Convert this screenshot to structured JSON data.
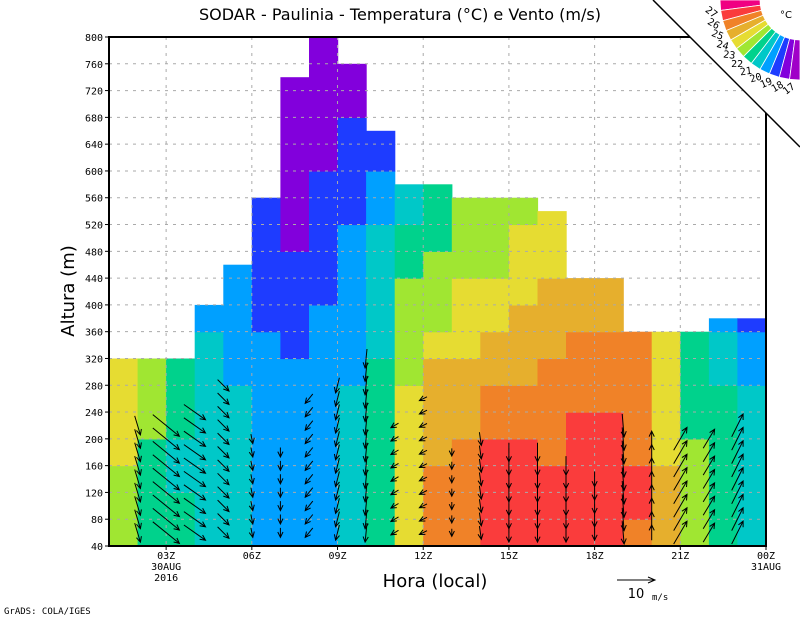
{
  "chart_data": {
    "type": "heatmap",
    "title": "SODAR - Paulinia - Temperatura (°C) e Vento (m/s)",
    "xlabel": "Hora (local)",
    "ylabel": "Altura (m)",
    "xlim_hours": [
      1,
      24
    ],
    "ylim": [
      40,
      800
    ],
    "grid": true,
    "y_ticks": [
      40,
      80,
      120,
      160,
      200,
      240,
      280,
      320,
      360,
      400,
      440,
      480,
      520,
      560,
      600,
      640,
      680,
      720,
      760,
      800
    ],
    "x_ticks": [
      {
        "hour": 3,
        "label": "03Z",
        "sub1": "30AUG",
        "sub2": "2016"
      },
      {
        "hour": 6,
        "label": "06Z"
      },
      {
        "hour": 9,
        "label": "09Z"
      },
      {
        "hour": 12,
        "label": "12Z"
      },
      {
        "hour": 15,
        "label": "15Z"
      },
      {
        "hour": 18,
        "label": "18Z"
      },
      {
        "hour": 21,
        "label": "21Z"
      },
      {
        "hour": 24,
        "label": "00Z",
        "sub1": "31AUG"
      }
    ],
    "colorbar": {
      "unit": "°C",
      "levels": [
        17,
        18,
        19,
        20,
        21,
        22,
        23,
        24,
        25,
        26,
        27
      ],
      "colors": [
        "#a000c8",
        "#8200dc",
        "#1e3cff",
        "#00a0ff",
        "#00c8c8",
        "#00d28c",
        "#a0e632",
        "#e6dc32",
        "#e6af2d",
        "#f08228",
        "#fa3c3c",
        "#f00082"
      ],
      "placement": "top-right"
    },
    "temperature": {
      "row_height_m": 40,
      "columns": [
        {
          "hour": 1,
          "top": 320,
          "t": [
            22.6,
            22.3,
            22.5,
            23.0,
            23.5,
            23.6,
            23.4
          ]
        },
        {
          "hour": 2,
          "top": 320,
          "t": [
            21.5,
            21.5,
            21.6,
            21.8,
            22.3,
            22.5,
            22.5
          ]
        },
        {
          "hour": 3,
          "top": 320,
          "t": [
            21.2,
            21.0,
            20.8,
            20.8,
            21.2,
            21.5,
            21.6
          ]
        },
        {
          "hour": 4,
          "top": 400,
          "t": [
            20.6,
            20.5,
            20.4,
            20.3,
            20.3,
            20.2,
            20.2,
            20.0,
            19.8
          ]
        },
        {
          "hour": 5,
          "top": 460,
          "t": [
            20.6,
            20.6,
            20.5,
            20.3,
            20.2,
            20.0,
            19.8,
            19.6,
            19.5,
            19.5,
            19.5
          ]
        },
        {
          "hour": 6,
          "top": 560,
          "t": [
            19.7,
            19.5,
            19.4,
            19.4,
            19.3,
            19.2,
            19.1,
            19.0,
            18.7,
            18.5,
            18.4,
            18.4,
            18.6
          ]
        },
        {
          "hour": 7,
          "top": 740,
          "t": [
            19.5,
            19.4,
            19.3,
            19.3,
            19.2,
            19.2,
            19.1,
            18.9,
            18.6,
            18.3,
            18.1,
            17.8,
            17.6,
            17.4,
            17.3,
            17.2,
            17.2,
            17.1
          ]
        },
        {
          "hour": 8,
          "top": 800,
          "t": [
            19.5,
            19.4,
            19.4,
            19.3,
            19.3,
            19.2,
            19.2,
            19.1,
            19.0,
            18.9,
            18.9,
            18.6,
            18.4,
            18.2,
            17.9,
            17.8,
            17.5,
            17.4,
            17.3
          ]
        },
        {
          "hour": 9,
          "top": 760,
          "t": [
            20.4,
            20.4,
            20.3,
            20.2,
            20.1,
            20.0,
            19.8,
            19.6,
            19.5,
            19.4,
            19.3,
            19.1,
            18.9,
            18.6,
            18.4,
            18.2,
            17.9,
            17.6
          ]
        },
        {
          "hour": 10,
          "top": 660,
          "t": [
            21.3,
            21.3,
            21.2,
            21.2,
            21.1,
            21.0,
            21.0,
            20.8,
            20.6,
            20.4,
            20.3,
            20.1,
            19.8,
            19.4,
            18.8,
            18.6
          ]
        },
        {
          "hour": 11,
          "top": 580,
          "t": [
            23.6,
            23.5,
            23.4,
            23.3,
            23.2,
            23.1,
            22.9,
            22.6,
            22.3,
            22.0,
            21.6,
            21.4,
            20.8,
            20.6
          ]
        },
        {
          "hour": 12,
          "top": 580,
          "t": [
            25.3,
            25.3,
            25.2,
            24.9,
            24.6,
            24.4,
            24.1,
            23.5,
            22.8,
            22.4,
            22.2,
            21.9,
            21.5,
            21.4
          ]
        },
        {
          "hour": 13,
          "top": 560,
          "t": [
            25.7,
            25.6,
            25.5,
            25.3,
            24.8,
            24.5,
            24.2,
            23.8,
            23.5,
            23.2,
            22.8,
            22.4,
            22.1
          ]
        },
        {
          "hour": 14,
          "top": 560,
          "t": [
            26.4,
            26.3,
            26.2,
            26.0,
            25.5,
            25.2,
            24.8,
            24.3,
            23.7,
            23.2,
            22.9,
            22.4,
            22.2
          ]
        },
        {
          "hour": 15,
          "top": 560,
          "t": [
            26.6,
            26.5,
            26.4,
            26.1,
            25.6,
            25.3,
            24.7,
            24.3,
            24.0,
            23.6,
            23.3,
            23.0,
            22.8
          ]
        },
        {
          "hour": 16,
          "top": 540,
          "t": [
            26.5,
            26.4,
            26.2,
            25.8,
            25.5,
            25.3,
            25.0,
            24.6,
            24.4,
            24.2,
            23.8,
            23.6,
            23.4
          ]
        },
        {
          "hour": 17,
          "top": 440,
          "t": [
            26.6,
            26.6,
            26.5,
            26.2,
            26.0,
            25.6,
            25.4,
            25.1,
            24.6,
            24.3
          ]
        },
        {
          "hour": 18,
          "top": 440,
          "t": [
            26.6,
            26.6,
            26.5,
            26.4,
            26.1,
            25.8,
            25.5,
            25.2,
            24.8,
            24.6
          ]
        },
        {
          "hour": 19,
          "top": 360,
          "t": [
            25.8,
            26.0,
            26.0,
            25.9,
            25.6,
            25.4,
            25.2,
            25.0
          ]
        },
        {
          "hour": 20,
          "top": 360,
          "t": [
            24.1,
            24.0,
            24.0,
            23.9,
            23.8,
            23.6,
            23.5,
            23.5
          ]
        },
        {
          "hour": 21,
          "top": 360,
          "t": [
            22.6,
            22.5,
            22.3,
            22.1,
            21.9,
            21.7,
            21.5,
            21.3
          ]
        },
        {
          "hour": 22,
          "top": 380,
          "t": [
            21.5,
            21.5,
            21.4,
            21.3,
            21.2,
            21.0,
            20.8,
            20.3,
            19.6
          ]
        },
        {
          "hour": 23,
          "top": 380,
          "t": [
            20.7,
            20.6,
            20.5,
            20.4,
            20.2,
            20.0,
            19.8,
            19.5,
            18.8
          ]
        }
      ]
    },
    "wind": {
      "unit": "m/s",
      "level_start": 60,
      "level_step": 20,
      "reference": {
        "speed": 10,
        "label": "10",
        "unit_label": "m/s"
      },
      "columns": [
        {
          "hour": 2,
          "top": 220,
          "u": 1.5,
          "v": -5
        },
        {
          "hour": 3,
          "top": 220,
          "u": 7,
          "v": -5.7
        },
        {
          "hour": 4,
          "top": 250,
          "u": 5.7,
          "v": -4
        },
        {
          "hour": 5,
          "top": 280,
          "u": 3,
          "v": -3
        },
        {
          "hour": 6,
          "top": 200,
          "u": 0.5,
          "v": -2.5
        },
        {
          "hour": 7,
          "top": 180,
          "u": 0,
          "v": -2.5
        },
        {
          "hour": 8,
          "top": 260,
          "u": -2,
          "v": -2.5
        },
        {
          "hour": 9,
          "top": 280,
          "u": -1,
          "v": -4
        },
        {
          "hour": 10,
          "top": 320,
          "u": -0.5,
          "v": -5
        },
        {
          "hour": 11,
          "top": 225,
          "u": -2,
          "v": -1.2
        },
        {
          "hour": 12,
          "top": 260,
          "u": -2,
          "v": -1
        },
        {
          "hour": 13,
          "top": 190,
          "u": 0,
          "v": -2
        },
        {
          "hour": 14,
          "top": 200,
          "u": 0.5,
          "v": -3.5
        },
        {
          "hour": 15,
          "top": 180,
          "u": 0,
          "v": -5
        },
        {
          "hour": 16,
          "top": 180,
          "u": 0,
          "v": -5
        },
        {
          "hour": 17,
          "top": 160,
          "u": 0,
          "v": -5
        },
        {
          "hour": 18,
          "top": 140,
          "u": 0,
          "v": -4
        },
        {
          "hour": 19,
          "top": 220,
          "u": 0.5,
          "v": -6
        },
        {
          "hour": 20,
          "top": 215,
          "u": 0,
          "v": 4
        },
        {
          "hour": 21,
          "top": 200,
          "u": 3.5,
          "v": 6
        },
        {
          "hour": 22,
          "top": 200,
          "u": 3,
          "v": 5
        },
        {
          "hour": 23,
          "top": 220,
          "u": 3,
          "v": 6
        }
      ]
    }
  },
  "footer": {
    "credit": "GrADS: COLA/IGES"
  }
}
